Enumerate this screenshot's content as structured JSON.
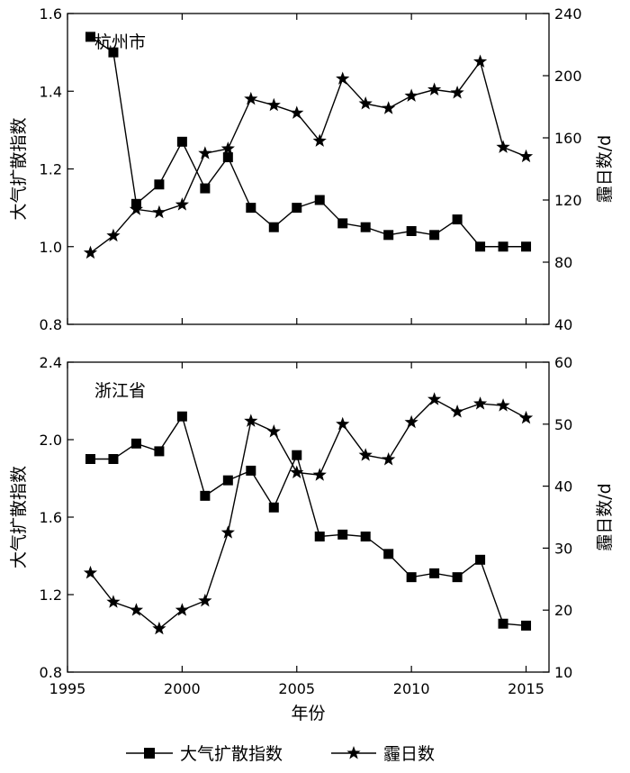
{
  "chart_data": [
    {
      "type": "line",
      "panel_label": "杭州市",
      "x": [
        1996,
        1997,
        1998,
        1999,
        2000,
        2001,
        2002,
        2003,
        2004,
        2005,
        2006,
        2007,
        2008,
        2009,
        2010,
        2011,
        2012,
        2013,
        2014,
        2015
      ],
      "xlim": [
        1995,
        2016
      ],
      "xticks": [
        1995,
        2000,
        2005,
        2010,
        2015
      ],
      "ylabel_left": "大气扩散指数",
      "ylabel_right": "霾日数/d",
      "ylim_left": [
        0.8,
        1.6
      ],
      "yticks_left": [
        "0.8",
        "1.0",
        "1.2",
        "1.4",
        "1.6"
      ],
      "ylim_right": [
        40,
        240
      ],
      "yticks_right": [
        "40",
        "80",
        "120",
        "160",
        "200",
        "240"
      ],
      "series": [
        {
          "name": "大气扩散指数",
          "axis": "left",
          "marker": "square",
          "values": [
            1.54,
            1.5,
            1.11,
            1.16,
            1.27,
            1.15,
            1.23,
            1.1,
            1.05,
            1.1,
            1.12,
            1.06,
            1.05,
            1.03,
            1.04,
            1.03,
            1.07,
            1.0,
            1.0,
            1.0
          ]
        },
        {
          "name": "霾日数",
          "axis": "right",
          "marker": "star",
          "values": [
            86,
            97,
            114,
            112,
            117,
            150,
            153,
            185,
            181,
            176,
            158,
            198,
            182,
            179,
            187,
            191,
            189,
            209,
            154,
            148
          ]
        }
      ]
    },
    {
      "type": "line",
      "panel_label": "浙江省",
      "x": [
        1996,
        1997,
        1998,
        1999,
        2000,
        2001,
        2002,
        2003,
        2004,
        2005,
        2006,
        2007,
        2008,
        2009,
        2010,
        2011,
        2012,
        2013,
        2014,
        2015
      ],
      "xlim": [
        1995,
        2016
      ],
      "xticks": [
        1995,
        2000,
        2005,
        2010,
        2015
      ],
      "xlabel": "年份",
      "ylabel_left": "大气扩散指数",
      "ylabel_right": "霾日数/d",
      "ylim_left": [
        0.8,
        2.4
      ],
      "yticks_left": [
        "0.8",
        "1.2",
        "1.6",
        "2.0",
        "2.4"
      ],
      "ylim_right": [
        10,
        60
      ],
      "yticks_right": [
        "10",
        "20",
        "30",
        "40",
        "50",
        "60"
      ],
      "series": [
        {
          "name": "大气扩散指数",
          "axis": "left",
          "marker": "square",
          "values": [
            1.9,
            1.9,
            1.98,
            1.94,
            2.12,
            1.71,
            1.79,
            1.84,
            1.65,
            1.92,
            1.5,
            1.51,
            1.5,
            1.41,
            1.29,
            1.31,
            1.29,
            1.38,
            1.05,
            1.04
          ]
        },
        {
          "name": "霾日数",
          "axis": "right",
          "marker": "star",
          "values": [
            26,
            21.3,
            20,
            17,
            20,
            21.5,
            32.5,
            50.5,
            48.8,
            42.2,
            41.8,
            50,
            45,
            44.3,
            50.3,
            54,
            52,
            53.3,
            53,
            51
          ]
        }
      ]
    }
  ],
  "legend": {
    "position": "bottom",
    "items": [
      {
        "label": "大气扩散指数",
        "marker": "square"
      },
      {
        "label": "霾日数",
        "marker": "star"
      }
    ]
  }
}
